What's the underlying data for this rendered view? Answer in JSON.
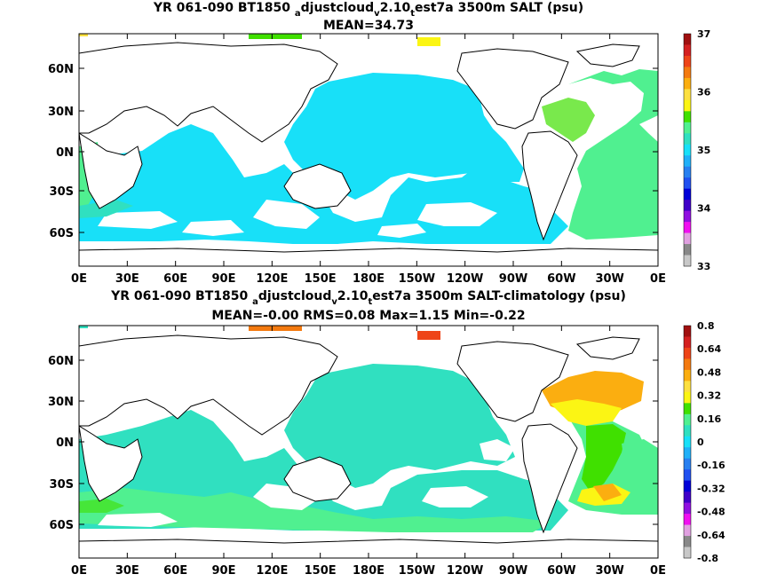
{
  "panels": [
    {
      "title": "YR 061-090 BT1850",
      "title_sub1": "a",
      "title_mid": "djustcloud",
      "title_sub2": "v",
      "title_mid2": "2.10",
      "title_sub3": "t",
      "title_tail": "est7a 3500m SALT (psu)",
      "stats": "MEAN=34.73",
      "colorbar_labels": [
        "37",
        "36",
        "35",
        "34",
        "33"
      ],
      "colorbar_colors": [
        "#a01010",
        "#d42020",
        "#ee4418",
        "#f47a10",
        "#fbae10",
        "#fde040",
        "#fbf514",
        "#40e000",
        "#50f090",
        "#30e0c0",
        "#18e0f8",
        "#20b0f8",
        "#2880f0",
        "#2050f0",
        "#0000d8",
        "#4000c8",
        "#9010e0",
        "#f010f0",
        "#e0a0e0",
        "#888888",
        "#c8c8c8"
      ],
      "x_tick_labels": [
        "0E",
        "30E",
        "60E",
        "90E",
        "120E",
        "150E",
        "180E",
        "150W",
        "120W",
        "90W",
        "60W",
        "30W",
        "0E"
      ],
      "y_tick_labels": [
        "60N",
        "30N",
        "0N",
        "30S",
        "60S"
      ]
    },
    {
      "title": "YR 061-090 BT1850",
      "title_sub1": "a",
      "title_mid": "djustcloud",
      "title_sub2": "v",
      "title_mid2": "2.10",
      "title_sub3": "t",
      "title_tail": "est7a 3500m SALT-climatology (psu)",
      "stats": "MEAN=-0.00   RMS=0.08   Max=1.15   Min=-0.22",
      "colorbar_labels": [
        "0.8",
        "0.64",
        "0.48",
        "0.32",
        "0.16",
        "0",
        "-0.16",
        "-0.32",
        "-0.48",
        "-0.64",
        "-0.8"
      ],
      "colorbar_colors": [
        "#a01010",
        "#d42020",
        "#ee4418",
        "#f47a10",
        "#fbae10",
        "#fde040",
        "#fbf514",
        "#40e000",
        "#50f090",
        "#30e0c0",
        "#18e0f8",
        "#20b0f8",
        "#2880f0",
        "#2050f0",
        "#0000d8",
        "#4000c8",
        "#9010e0",
        "#f010f0",
        "#e0a0e0",
        "#888888",
        "#c8c8c8"
      ],
      "x_tick_labels": [
        "0E",
        "30E",
        "60E",
        "90E",
        "120E",
        "150E",
        "180E",
        "150W",
        "120W",
        "90W",
        "60W",
        "30W",
        "0E"
      ],
      "y_tick_labels": [
        "60N",
        "30N",
        "0N",
        "30S",
        "60S"
      ]
    }
  ]
}
